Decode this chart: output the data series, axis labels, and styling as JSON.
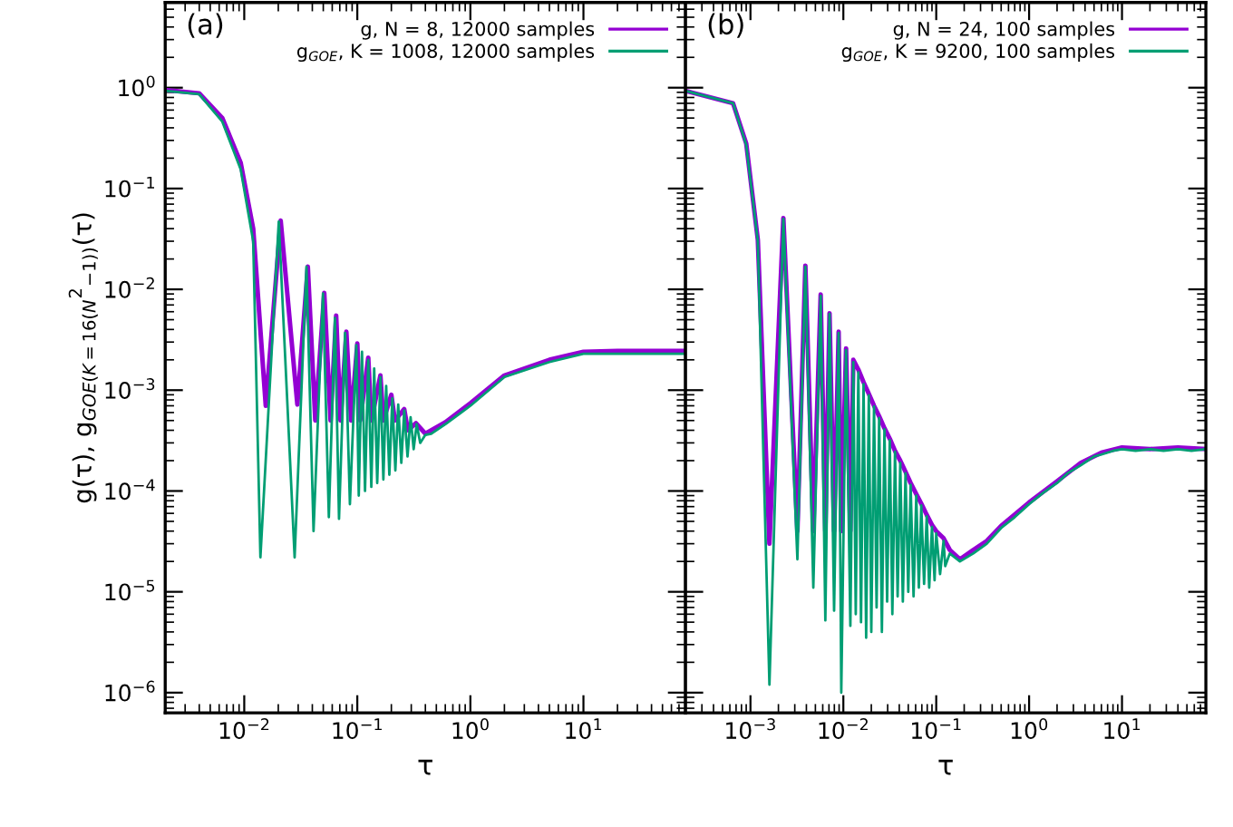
{
  "chart_data": [
    {
      "type": "line",
      "xlabel": "τ",
      "ylabel": "g(τ), g$_{GOE(K=16(N}$$^{2}$$_{−1))}$(τ)",
      "annotations": [
        "(a)"
      ],
      "log": "xy",
      "legend": "top right",
      "grid": false,
      "xlim": [
        0.002,
        80
      ],
      "ylim": [
        6.3e-07,
        7
      ],
      "xticks": [
        {
          "value": 0.01,
          "label": "10$^{−2}$"
        },
        {
          "value": 0.1,
          "label": "10$^{−1}$"
        },
        {
          "value": 1,
          "label": "10$^{0}$"
        },
        {
          "value": 10,
          "label": "10$^{1}$"
        }
      ],
      "yticks": [
        {
          "value": 1e-06,
          "label": "10$^{−6}$"
        },
        {
          "value": 1e-05,
          "label": "10$^{−5}$"
        },
        {
          "value": 0.0001,
          "label": "10$^{−4}$"
        },
        {
          "value": 0.001,
          "label": "10$^{−3}$"
        },
        {
          "value": 0.01,
          "label": "10$^{−2}$"
        },
        {
          "value": 0.1,
          "label": "10$^{−1}$"
        },
        {
          "value": 1,
          "label": "10$^{0}$"
        }
      ],
      "series": [
        {
          "name": "g, N = 8, 12000 samples",
          "color": "#9400d3",
          "x": [
            0.002,
            0.004,
            0.0064,
            0.0093,
            0.012,
            0.0155,
            0.021,
            0.0295,
            0.0365,
            0.0425,
            0.051,
            0.058,
            0.065,
            0.071,
            0.08,
            0.088,
            0.1,
            0.106,
            0.125,
            0.133,
            0.16,
            0.17,
            0.2,
            0.215,
            0.26,
            0.28,
            0.33,
            0.4,
            0.6,
            1,
            2,
            5,
            10,
            20,
            40,
            80
          ],
          "values": [
            0.95,
            0.88,
            0.5,
            0.18,
            0.04,
            0.0007,
            0.048,
            0.00072,
            0.0168,
            0.0005,
            0.0092,
            0.0005,
            0.0055,
            0.0005,
            0.0038,
            0.0005,
            0.0029,
            0.0005,
            0.0021,
            0.0005,
            0.0014,
            0.0005,
            0.0009,
            0.0005,
            0.00065,
            0.0004,
            0.00047,
            0.00037,
            0.00048,
            0.00074,
            0.0014,
            0.002,
            0.0024,
            0.00245,
            0.00245,
            0.00245
          ]
        },
        {
          "name": "g$_{GOE}$, K = 1008, 12000 samples",
          "color": "#009e73",
          "x": [
            0.002,
            0.004,
            0.0064,
            0.0093,
            0.012,
            0.0139,
            0.0202,
            0.0279,
            0.0355,
            0.041,
            0.0497,
            0.056,
            0.0634,
            0.0689,
            0.078,
            0.086,
            0.098,
            0.103,
            0.11,
            0.117,
            0.125,
            0.133,
            0.141,
            0.15,
            0.16,
            0.17,
            0.18,
            0.192,
            0.204,
            0.217,
            0.23,
            0.245,
            0.26,
            0.278,
            0.296,
            0.315,
            0.335,
            0.36,
            0.4,
            0.45,
            0.6,
            1,
            2,
            5,
            10,
            20,
            40,
            80
          ],
          "values": [
            0.93,
            0.86,
            0.46,
            0.155,
            0.03,
            2.2e-05,
            0.047,
            2.2e-05,
            0.0168,
            4e-05,
            0.0091,
            5.5e-05,
            0.0052,
            5.3e-05,
            0.0037,
            7.4e-05,
            0.0028,
            9e-05,
            0.0024,
            0.0001,
            0.002,
            0.00011,
            0.00164,
            0.00012,
            0.00135,
            0.00013,
            0.0011,
            0.000145,
            0.00083,
            0.00016,
            0.00072,
            0.00019,
            0.00063,
            0.00022,
            0.00054,
            0.00026,
            0.00046,
            0.0003,
            0.00036,
            0.00037,
            0.00046,
            0.0007,
            0.00135,
            0.0019,
            0.0023,
            0.0023,
            0.0023,
            0.0023
          ]
        }
      ]
    },
    {
      "type": "line",
      "xlabel": "τ",
      "annotations": [
        "(b)"
      ],
      "log": "xy",
      "legend": "top right",
      "grid": false,
      "tick_labels": "x",
      "xlim": [
        0.0002,
        80
      ],
      "ylim": [
        6.3e-07,
        7
      ],
      "xticks": [
        {
          "value": 0.001,
          "label": "10$^{−3}$"
        },
        {
          "value": 0.01,
          "label": "10$^{−2}$"
        },
        {
          "value": 0.1,
          "label": "10$^{−1}$"
        },
        {
          "value": 1,
          "label": "10$^{0}$"
        },
        {
          "value": 10,
          "label": "10$^{1}$"
        }
      ],
      "yticks": [
        1e-06,
        1e-05,
        0.0001,
        0.001,
        0.01,
        0.1,
        1
      ],
      "series": [
        {
          "name": "g, N = 24, 100 samples",
          "color": "#9400d3",
          "x": [
            0.0002,
            0.00065,
            0.0009,
            0.0012,
            0.0016,
            0.00226,
            0.0032,
            0.0039,
            0.00475,
            0.0057,
            0.0064,
            0.0071,
            0.00795,
            0.0089,
            0.0095,
            0.0107,
            0.0119,
            0.0128,
            0.0145,
            0.0165,
            0.0188,
            0.0214,
            0.0243,
            0.0277,
            0.0316,
            0.036,
            0.041,
            0.0467,
            0.053,
            0.061,
            0.069,
            0.079,
            0.09,
            0.1,
            0.12,
            0.14,
            0.18,
            0.25,
            0.35,
            0.5,
            1,
            2,
            3.6,
            6,
            10,
            20,
            40,
            80
          ],
          "values": [
            0.93,
            0.7,
            0.28,
            0.031,
            3e-05,
            0.051,
            4e-05,
            0.0172,
            4e-05,
            0.0089,
            4e-05,
            0.0058,
            4e-05,
            0.0038,
            4e-05,
            0.0026,
            4e-05,
            0.002,
            0.0016,
            0.0012,
            0.00092,
            0.0007,
            0.00055,
            0.00042,
            0.00033,
            0.00025,
            0.0002,
            0.000155,
            0.00012,
            9.3e-05,
            7.5e-05,
            5.8e-05,
            4.6e-05,
            4e-05,
            3.4e-05,
            2.6e-05,
            2.1e-05,
            2.6e-05,
            3.2e-05,
            4.5e-05,
            7.7e-05,
            0.000125,
            0.00019,
            0.00024,
            0.00027,
            0.00026,
            0.00027,
            0.00026
          ]
        },
        {
          "name": "g$_{GOE}$, K = 9200, 100 samples",
          "color": "#009e73",
          "x": [
            0.0002,
            0.00065,
            0.0009,
            0.0012,
            0.0016,
            0.00226,
            0.0032,
            0.0039,
            0.00475,
            0.0057,
            0.0064,
            0.0071,
            0.00795,
            0.0089,
            0.0095,
            0.0107,
            0.0119,
            0.0128,
            0.0136,
            0.0145,
            0.0155,
            0.0165,
            0.0176,
            0.0188,
            0.02,
            0.0214,
            0.0228,
            0.0243,
            0.026,
            0.0277,
            0.0296,
            0.0316,
            0.0337,
            0.036,
            0.0384,
            0.041,
            0.0437,
            0.0467,
            0.05,
            0.053,
            0.057,
            0.061,
            0.065,
            0.069,
            0.074,
            0.079,
            0.084,
            0.09,
            0.096,
            0.1,
            0.11,
            0.12,
            0.125,
            0.14,
            0.18,
            0.25,
            0.35,
            0.5,
            0.7,
            1,
            1.4,
            2,
            2.6,
            3.6,
            5,
            6,
            8,
            10,
            14,
            20,
            28,
            40,
            56,
            80
          ],
          "values": [
            0.93,
            0.7,
            0.27,
            0.03,
            1.2e-06,
            0.05,
            2.1e-05,
            0.0168,
            1.1e-05,
            0.0086,
            5.2e-06,
            0.0057,
            6.5e-06,
            0.0037,
            1e-06,
            0.0025,
            4.6e-06,
            0.0019,
            6e-06,
            0.0015,
            5e-06,
            0.00115,
            3.5e-06,
            0.00089,
            4e-06,
            0.00069,
            7e-06,
            0.00053,
            4e-06,
            0.00041,
            8e-06,
            0.00032,
            6e-06,
            0.000245,
            9e-06,
            0.00019,
            8e-06,
            0.00015,
            1e-05,
            0.000115,
            9e-06,
            9e-05,
            1.1e-05,
            7.2e-05,
            1.2e-05,
            5.6e-05,
            1.1e-05,
            4.4e-05,
            1.3e-05,
            3.8e-05,
            1.5e-05,
            3.2e-05,
            1.8e-05,
            2.4e-05,
            2e-05,
            2.4e-05,
            3e-05,
            4.3e-05,
            5.5e-05,
            7.4e-05,
            9.5e-05,
            0.00012,
            0.00015,
            0.00018,
            0.00022,
            0.00023,
            0.00025,
            0.00026,
            0.00025,
            0.00026,
            0.00025,
            0.00026,
            0.00025,
            0.00026
          ]
        }
      ]
    }
  ]
}
